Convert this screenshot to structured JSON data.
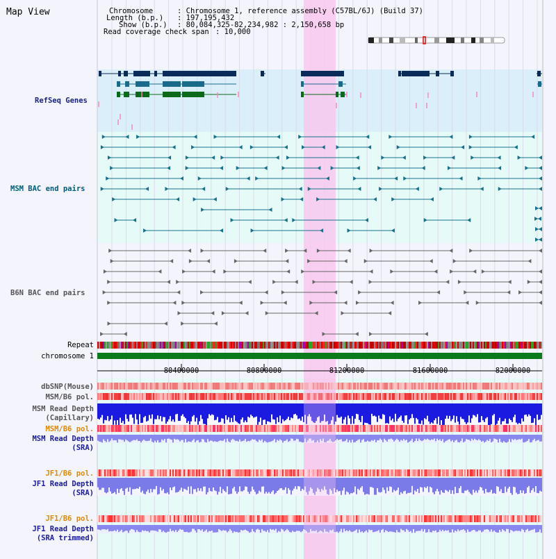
{
  "title": "Map View",
  "info": {
    "chromosome_key": "Chromosome",
    "chromosome_val": ": Chromosome 1, reference assembly (C57BL/6J) (Build 37)",
    "length_key": "Length (b.p.)",
    "length_val": ": 197,195,432",
    "show_key": "Show (b.p.)",
    "show_val": ": 80,084,325-82,234,982 : 2,150,658 bp",
    "coverage_key": "Read coverage check span",
    "coverage_val": ": 10,000"
  },
  "tracks": {
    "refseq": "RefSeq Genes",
    "msm_bac": "MSM BAC end pairs",
    "b6n_bac": "B6N BAC end pairs",
    "repeat": "Repeat",
    "chromosome": "chromosome 1",
    "dbsnp": "dbSNP(Mouse)",
    "msm_b6_pol_1": "MSM/B6 pol.",
    "msm_read_depth_cap_1": "MSM Read Depth",
    "msm_read_depth_cap_2": "(Capillary)",
    "msm_b6_pol_2": "MSM/B6 pol.",
    "msm_read_depth_sra_1": "MSM Read Depth",
    "msm_read_depth_sra_2": "(SRA)",
    "jf1_b6_pol_1": "JF1/B6 pol.",
    "jf1_read_depth_sra_1": "JF1 Read Depth",
    "jf1_read_depth_sra_2": "(SRA)",
    "jf1_b6_pol_2": "JF1/B6 pol.",
    "jf1_read_depth_trim_1": "JF1 Read Depth",
    "jf1_read_depth_trim_2": "(SRA trimmed)"
  },
  "axis": {
    "ticks": [
      "80400000",
      "80800000",
      "81200000",
      "81600000",
      "82000000"
    ]
  },
  "colors": {
    "refseq_label": "#1a237e",
    "msm_label": "#005a7a",
    "b6n_label": "#555555",
    "pol_label": "#e08a00",
    "depth_label": "#1a1aa0",
    "highlight": "#f8c8ee",
    "chromosome_bar": "#0a7a1a"
  }
}
